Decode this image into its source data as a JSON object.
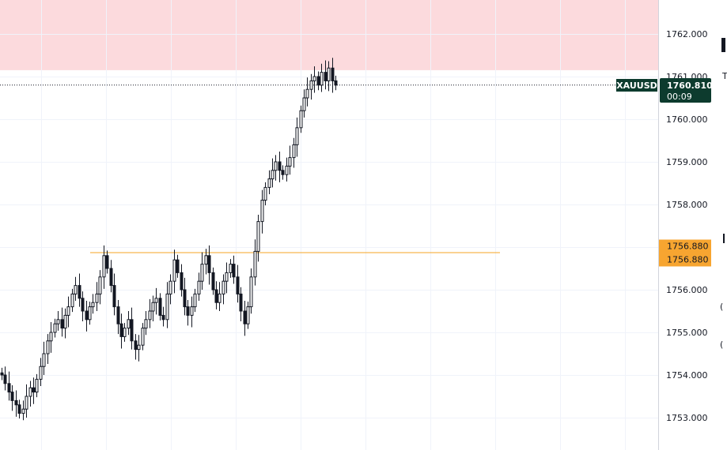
{
  "chart_data": {
    "type": "candlestick",
    "symbol": "XAUUSD",
    "title": "",
    "xlabel": "",
    "ylabel": "",
    "y_ticks": [
      1753,
      1754,
      1755,
      1756,
      1757,
      1758,
      1759,
      1760,
      1761,
      1762
    ],
    "y_tick_labels": [
      "1753.000",
      "1754.000",
      "1755.000",
      "1756.000",
      "1757.000",
      "1758.000",
      "1759.000",
      "1760.000",
      "1761.000",
      "1762.000"
    ],
    "ylim": [
      1752.7,
      1763.3
    ],
    "grid": true,
    "resistance_zone": {
      "from": 1761.15,
      "to": 1763.3,
      "color": "#fcdadd"
    },
    "horizontal_line": {
      "price": 1756.88,
      "color": "#f5a623"
    },
    "current_price": {
      "value": 1760.81,
      "label": "1760.810",
      "countdown": "00:09",
      "color": "#0d3b2e"
    },
    "level_labels": [
      {
        "value": 1756.88,
        "label": "1756.880",
        "color": "#f7a530"
      },
      {
        "value": 1756.88,
        "label": "1756.880",
        "color": "#f7a530"
      }
    ],
    "closes": [
      1754.0,
      1753.8,
      1753.6,
      1753.4,
      1753.3,
      1753.1,
      1753.2,
      1753.5,
      1753.7,
      1753.6,
      1753.9,
      1754.2,
      1754.5,
      1754.8,
      1755.0,
      1755.2,
      1755.3,
      1755.1,
      1755.4,
      1755.6,
      1755.9,
      1756.1,
      1755.8,
      1755.5,
      1755.3,
      1755.6,
      1755.7,
      1755.9,
      1756.3,
      1756.8,
      1756.5,
      1756.1,
      1755.6,
      1755.2,
      1754.9,
      1755.1,
      1755.3,
      1754.8,
      1754.6,
      1754.7,
      1755.1,
      1755.3,
      1755.5,
      1755.7,
      1755.8,
      1755.4,
      1755.3,
      1755.9,
      1756.2,
      1756.7,
      1756.4,
      1756.0,
      1755.6,
      1755.4,
      1755.6,
      1755.9,
      1756.2,
      1756.6,
      1756.8,
      1756.4,
      1756.0,
      1755.7,
      1755.9,
      1756.2,
      1756.4,
      1756.6,
      1756.3,
      1755.9,
      1755.5,
      1755.2,
      1755.6,
      1756.3,
      1756.9,
      1757.6,
      1758.1,
      1758.4,
      1758.6,
      1758.8,
      1759.0,
      1758.8,
      1758.7,
      1758.9,
      1759.1,
      1759.4,
      1759.8,
      1760.2,
      1760.5,
      1760.7,
      1760.9,
      1761.0,
      1760.8,
      1761.1,
      1760.9,
      1761.2,
      1760.9,
      1760.8
    ]
  }
}
